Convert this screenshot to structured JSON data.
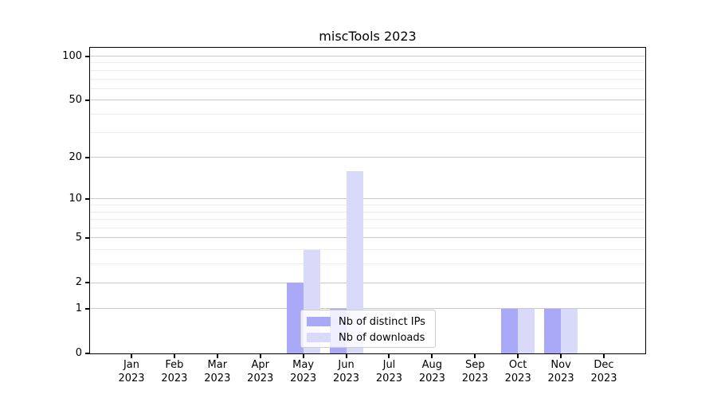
{
  "chart_data": {
    "type": "bar",
    "title": "miscTools 2023",
    "categories": [
      "Jan",
      "Feb",
      "Mar",
      "Apr",
      "May",
      "Jun",
      "Jul",
      "Aug",
      "Sep",
      "Oct",
      "Nov",
      "Dec"
    ],
    "year_label": "2023",
    "series": [
      {
        "name": "Nb of distinct IPs",
        "color": "#a9a9f7",
        "values": [
          0,
          0,
          0,
          0,
          2,
          1,
          0,
          0,
          0,
          1,
          1,
          0
        ]
      },
      {
        "name": "Nb of downloads",
        "color": "#d9d9fa",
        "values": [
          0,
          0,
          0,
          0,
          4,
          16,
          0,
          0,
          0,
          1,
          1,
          0
        ]
      }
    ],
    "y_axis": {
      "scale": "log1p",
      "major_ticks": [
        100,
        50,
        20,
        10,
        5,
        2,
        1,
        0
      ],
      "minor_ticks": [
        3,
        4,
        6,
        7,
        8,
        9,
        30,
        40,
        60,
        70,
        80,
        90
      ],
      "range_top": 114
    },
    "legend_position": "lower center",
    "grid": true
  },
  "colors": {
    "bar_distinct_ips": "#a9a9f7",
    "bar_downloads": "#d9d9fa",
    "grid_major": "#c9c9c9",
    "grid_minor": "#ececec",
    "axis": "#000000",
    "legend_border": "#cccccc",
    "legend_background": "rgba(255,255,255,0.8)"
  }
}
